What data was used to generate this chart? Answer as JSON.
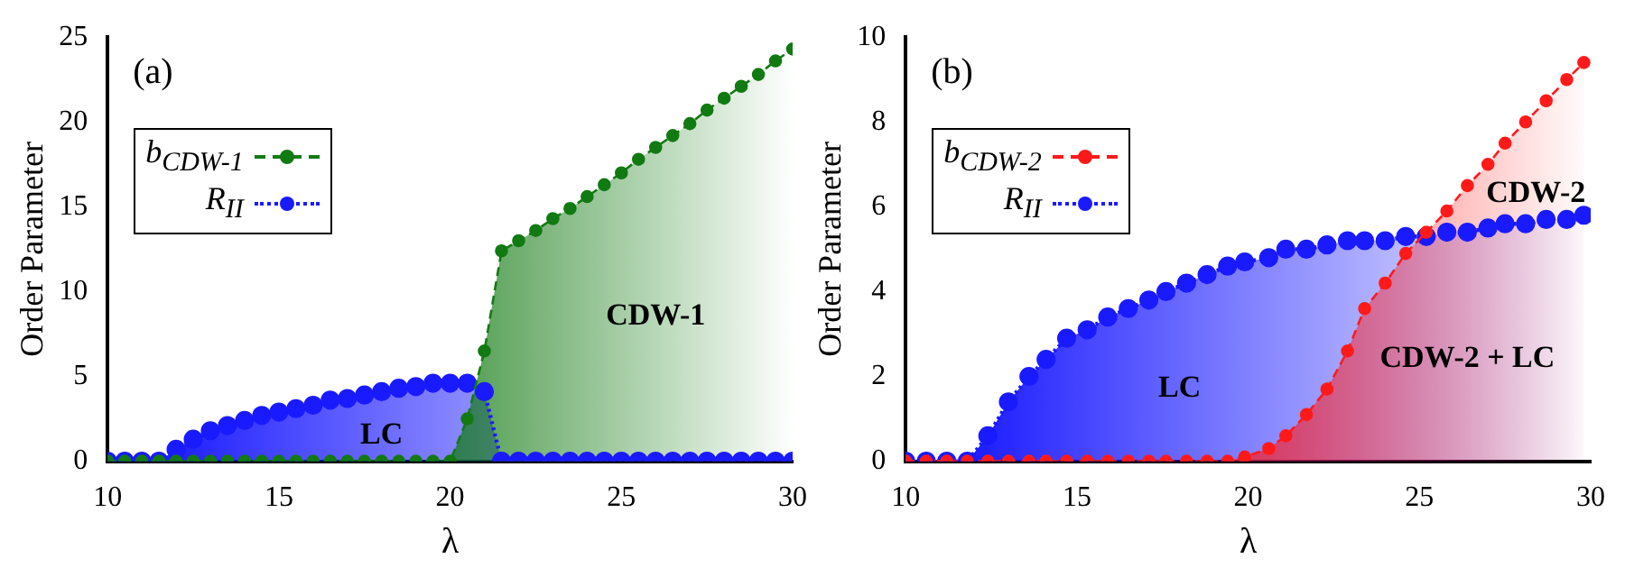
{
  "chart_data": [
    {
      "type": "area",
      "title": "(a)",
      "xlabel": "λ",
      "ylabel": "Order Parameter",
      "x": [
        10,
        10.5,
        11,
        11.5,
        12,
        12.5,
        13,
        13.5,
        14,
        14.5,
        15,
        15.5,
        16,
        16.5,
        17,
        17.5,
        18,
        18.5,
        19,
        19.5,
        20,
        20.5,
        21,
        21.5,
        22,
        22.5,
        23,
        23.5,
        24,
        24.5,
        25,
        25.5,
        26,
        26.5,
        27,
        27.5,
        28,
        28.5,
        29,
        29.5,
        30
      ],
      "series": [
        {
          "name": "b$_{CDW-1}$",
          "color": "#127a12",
          "line_style": "dashed",
          "values": [
            0,
            0,
            0,
            0,
            0,
            0,
            0,
            0,
            0,
            0,
            0,
            0,
            0,
            0,
            0,
            0,
            0,
            0,
            0,
            0,
            0,
            2.5,
            6.5,
            12.4,
            13.0,
            13.6,
            14.3,
            14.9,
            15.6,
            16.3,
            17.0,
            17.8,
            18.5,
            19.2,
            19.9,
            20.7,
            21.4,
            22.1,
            22.8,
            23.6,
            24.3
          ]
        },
        {
          "name": "R$_{II}$",
          "color": "#1a1aff",
          "line_style": "dotted",
          "values": [
            0,
            0,
            0,
            0,
            0.7,
            1.3,
            1.8,
            2.1,
            2.4,
            2.7,
            2.9,
            3.1,
            3.3,
            3.6,
            3.7,
            3.9,
            4.1,
            4.3,
            4.4,
            4.6,
            4.6,
            4.6,
            4.1,
            0,
            0,
            0,
            0,
            0,
            0,
            0,
            0,
            0,
            0,
            0,
            0,
            0,
            0,
            0,
            0,
            0,
            0
          ]
        }
      ],
      "xlim": [
        10,
        30
      ],
      "xticks": [
        10,
        15,
        20,
        25,
        30
      ],
      "ylim": [
        0,
        25
      ],
      "yticks": [
        0,
        5,
        10,
        15,
        20,
        25
      ],
      "annotations": [
        "LC",
        "CDW-1"
      ],
      "marker": "circle",
      "grid": false,
      "legend": "top left"
    },
    {
      "type": "area",
      "title": "(b)",
      "xlabel": "λ",
      "ylabel": "Order Parameter",
      "x": [
        10,
        10.6,
        11.2,
        11.8,
        12.4,
        13.0,
        13.6,
        14.1,
        14.7,
        15.3,
        15.9,
        16.5,
        17.1,
        17.6,
        18.2,
        18.8,
        19.4,
        19.9,
        20.6,
        21.1,
        21.7,
        22.3,
        22.9,
        23.4,
        24.0,
        24.6,
        25.2,
        25.8,
        26.4,
        27.0,
        27.5,
        28.1,
        28.7,
        29.3,
        29.8
      ],
      "series": [
        {
          "name": "b$_{CDW-2}$",
          "color": "#ff1a1a",
          "line_style": "dashed",
          "values": [
            0,
            0,
            0,
            0,
            0,
            0,
            0,
            0,
            0,
            0,
            0,
            0,
            0,
            0,
            0,
            0,
            0,
            0.1,
            0.3,
            0.6,
            1.1,
            1.7,
            2.6,
            3.6,
            4.2,
            4.9,
            5.4,
            5.9,
            6.5,
            7.0,
            7.5,
            8.0,
            8.5,
            9.0,
            9.4
          ]
        },
        {
          "name": "R$_{II}$",
          "color": "#1a1aff",
          "line_style": "dotted",
          "values": [
            0,
            0,
            0,
            0,
            0.6,
            1.4,
            2.0,
            2.4,
            2.9,
            3.1,
            3.4,
            3.6,
            3.8,
            4.0,
            4.2,
            4.4,
            4.6,
            4.7,
            4.8,
            5.0,
            5.0,
            5.1,
            5.2,
            5.2,
            5.2,
            5.3,
            5.3,
            5.4,
            5.4,
            5.5,
            5.6,
            5.6,
            5.7,
            5.7,
            5.8
          ]
        }
      ],
      "xlim": [
        10,
        30
      ],
      "xticks": [
        10,
        15,
        20,
        25,
        30
      ],
      "ylim": [
        0,
        10
      ],
      "yticks": [
        0,
        2,
        4,
        6,
        8,
        10
      ],
      "annotations": [
        "LC",
        "CDW-2 + LC",
        "CDW-2"
      ],
      "marker": "circle",
      "grid": false,
      "legend": "top left"
    }
  ]
}
